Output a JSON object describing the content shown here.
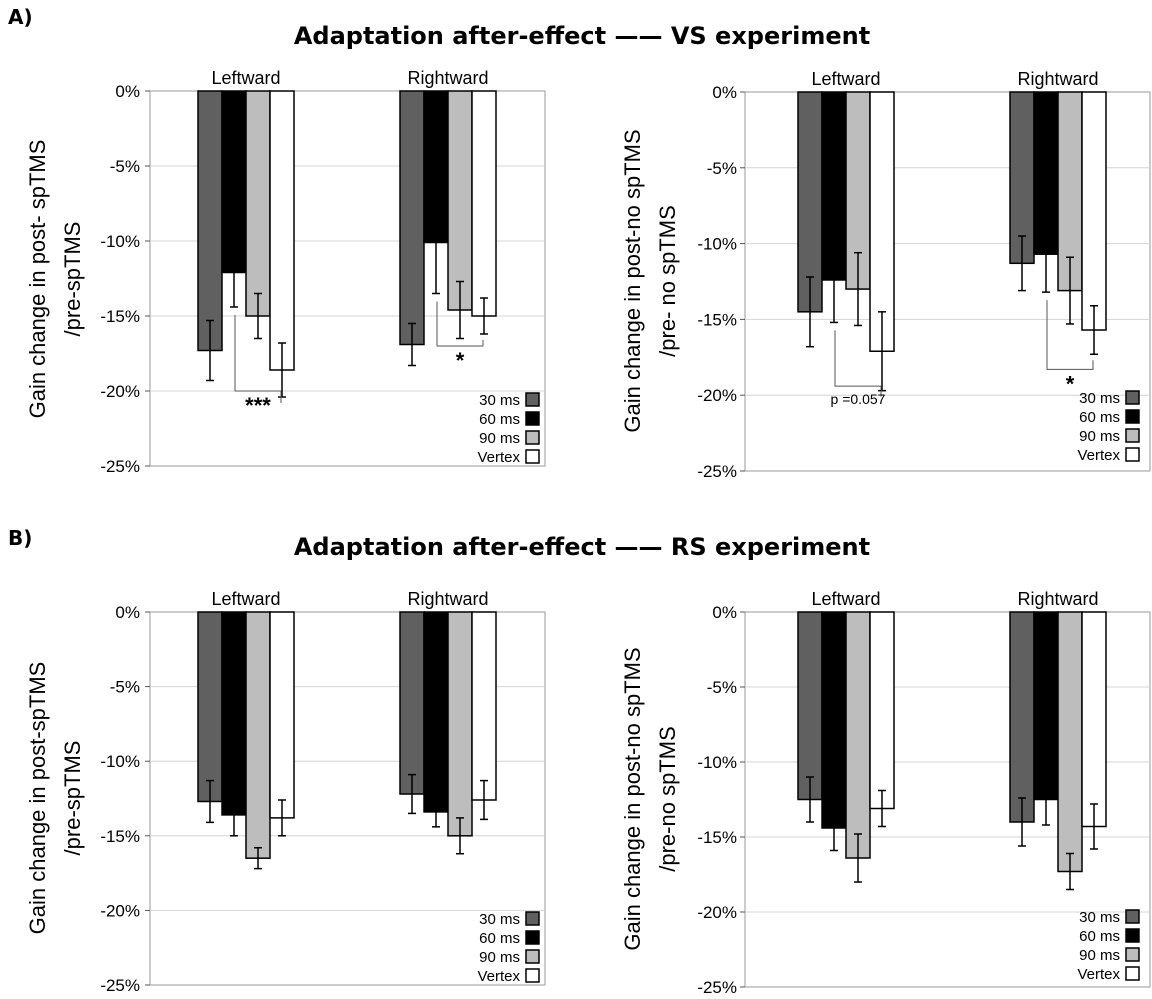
{
  "sections": [
    {
      "label": "A)",
      "title": "Adaptation after-effect —— VS experiment"
    },
    {
      "label": "B)",
      "title": "Adaptation after-effect —— RS experiment"
    }
  ],
  "colors": {
    "30 ms": "#606060",
    "60 ms": "#000000",
    "90 ms": "#bdbdbd",
    "Vertex": "#ffffff"
  },
  "chart_data": [
    {
      "type": "bar",
      "section": "A",
      "ylabel": [
        "Gain change in post- spTMS",
        "/pre-spTMS"
      ],
      "ylim": [
        -25,
        0
      ],
      "yticks": [
        "0%",
        "-5%",
        "-10%",
        "-15%",
        "-20%",
        "-25%"
      ],
      "categories": [
        "Leftward",
        "Rightward"
      ],
      "series": [
        {
          "name": "30 ms",
          "values": [
            -17.3,
            -16.9
          ],
          "errors": [
            2.0,
            1.4
          ]
        },
        {
          "name": "60 ms",
          "values": [
            -12.1,
            -10.1
          ],
          "errors": [
            2.3,
            3.4
          ]
        },
        {
          "name": "90 ms",
          "values": [
            -15.0,
            -14.6
          ],
          "errors": [
            1.5,
            1.9
          ]
        },
        {
          "name": "Vertex",
          "values": [
            -18.6,
            -15.0
          ],
          "errors": [
            1.8,
            1.2
          ]
        }
      ],
      "annotations": [
        {
          "group": 0,
          "from": "60 ms",
          "to": "Vertex",
          "text": "***",
          "y": -20.0
        },
        {
          "group": 1,
          "from": "60 ms",
          "to": "Vertex",
          "text": "*",
          "y": -17.0
        }
      ]
    },
    {
      "type": "bar",
      "section": "A",
      "ylabel": [
        "Gain change in post-no spTMS",
        "/pre- no spTMS"
      ],
      "ylim": [
        -25,
        0
      ],
      "yticks": [
        "0%",
        "-5%",
        "-10%",
        "-15%",
        "-20%",
        "-25%"
      ],
      "categories": [
        "Leftward",
        "Rightward"
      ],
      "series": [
        {
          "name": "30 ms",
          "values": [
            -14.5,
            -11.3
          ],
          "errors": [
            2.3,
            1.8
          ]
        },
        {
          "name": "60 ms",
          "values": [
            -12.4,
            -10.7
          ],
          "errors": [
            2.8,
            2.5
          ]
        },
        {
          "name": "90 ms",
          "values": [
            -13.0,
            -13.1
          ],
          "errors": [
            2.4,
            2.2
          ]
        },
        {
          "name": "Vertex",
          "values": [
            -17.1,
            -15.7
          ],
          "errors": [
            2.6,
            1.6
          ]
        }
      ],
      "annotations": [
        {
          "group": 0,
          "from": "60 ms",
          "to": "Vertex",
          "text": "p =0.057",
          "y": -19.4
        },
        {
          "group": 1,
          "from": "60 ms",
          "to": "Vertex",
          "text": "*",
          "y": -18.3
        }
      ]
    },
    {
      "type": "bar",
      "section": "B",
      "ylabel": [
        "Gain change in post-spTMS",
        "/pre-spTMS"
      ],
      "ylim": [
        -25,
        0
      ],
      "yticks": [
        "0%",
        "-5%",
        "-10%",
        "-15%",
        "-20%",
        "-25%"
      ],
      "categories": [
        "Leftward",
        "Rightward"
      ],
      "series": [
        {
          "name": "30 ms",
          "values": [
            -12.7,
            -12.2
          ],
          "errors": [
            1.4,
            1.3
          ]
        },
        {
          "name": "60 ms",
          "values": [
            -13.6,
            -13.4
          ],
          "errors": [
            1.4,
            1.0
          ]
        },
        {
          "name": "90 ms",
          "values": [
            -16.5,
            -15.0
          ],
          "errors": [
            0.7,
            1.2
          ]
        },
        {
          "name": "Vertex",
          "values": [
            -13.8,
            -12.6
          ],
          "errors": [
            1.2,
            1.3
          ]
        }
      ],
      "annotations": []
    },
    {
      "type": "bar",
      "section": "B",
      "ylabel": [
        "Gain change in post-no spTMS",
        "/pre-no spTMS"
      ],
      "ylim": [
        -25,
        0
      ],
      "yticks": [
        "0%",
        "-5%",
        "-10%",
        "-15%",
        "-20%",
        "-25%"
      ],
      "categories": [
        "Leftward",
        "Rightward"
      ],
      "series": [
        {
          "name": "30 ms",
          "values": [
            -12.5,
            -14.0
          ],
          "errors": [
            1.5,
            1.6
          ]
        },
        {
          "name": "60 ms",
          "values": [
            -14.4,
            -12.5
          ],
          "errors": [
            1.5,
            1.7
          ]
        },
        {
          "name": "90 ms",
          "values": [
            -16.4,
            -17.3
          ],
          "errors": [
            1.6,
            1.2
          ]
        },
        {
          "name": "Vertex",
          "values": [
            -13.1,
            -14.3
          ],
          "errors": [
            1.2,
            1.5
          ]
        }
      ],
      "annotations": []
    }
  ]
}
